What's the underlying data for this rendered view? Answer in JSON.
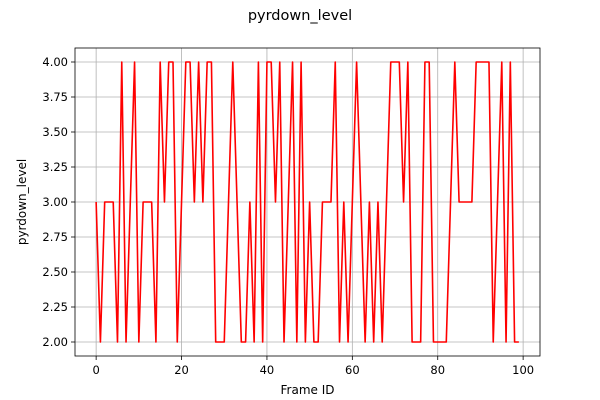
{
  "chart_data": {
    "type": "line",
    "title": "pyrdown_level",
    "xlabel": "Frame ID",
    "ylabel": "pyrdown_level",
    "xlim": [
      -4.95,
      103.95
    ],
    "ylim": [
      1.9,
      4.1
    ],
    "xticks": [
      0,
      20,
      40,
      60,
      80,
      100
    ],
    "xtick_labels": [
      "0",
      "20",
      "40",
      "60",
      "80",
      "100"
    ],
    "yticks": [
      2.0,
      2.25,
      2.5,
      2.75,
      3.0,
      3.25,
      3.5,
      3.75,
      4.0
    ],
    "ytick_labels": [
      "2.00",
      "2.25",
      "2.50",
      "2.75",
      "3.00",
      "3.25",
      "3.50",
      "3.75",
      "4.00"
    ],
    "grid": true,
    "line_color": "#ff0000",
    "series": [
      {
        "x": [
          0,
          1,
          2,
          3,
          4,
          5,
          6,
          7,
          8,
          9,
          10,
          11,
          12,
          13,
          14,
          15,
          16,
          17,
          18,
          19,
          20,
          21,
          22,
          23,
          24,
          25,
          26,
          27,
          28,
          29,
          30,
          31,
          32,
          33,
          34,
          35,
          36,
          37,
          38,
          39,
          40,
          41,
          42,
          43,
          44,
          45,
          46,
          47,
          48,
          49,
          50,
          51,
          52,
          53,
          54,
          55,
          56,
          57,
          58,
          59,
          60,
          61,
          62,
          63,
          64,
          65,
          66,
          67,
          68,
          69,
          70,
          71,
          72,
          73,
          74,
          75,
          76,
          77,
          78,
          79,
          80,
          81,
          82,
          83,
          84,
          85,
          86,
          87,
          88,
          89,
          90,
          91,
          92,
          93,
          94,
          95,
          96,
          97,
          98,
          99
        ],
        "values": [
          3,
          2,
          3,
          3,
          3,
          2,
          4,
          2,
          3,
          4,
          2,
          3,
          3,
          3,
          2,
          4,
          3,
          4,
          4,
          2,
          3,
          4,
          4,
          3,
          4,
          3,
          4,
          4,
          2,
          2,
          2,
          3,
          4,
          3,
          2,
          2,
          3,
          2,
          4,
          2,
          4,
          4,
          3,
          4,
          2,
          3,
          4,
          2,
          4,
          2,
          3,
          2,
          2,
          3,
          3,
          3,
          4,
          2,
          3,
          2,
          3,
          4,
          3,
          2,
          3,
          2,
          3,
          2,
          3,
          4,
          4,
          4,
          3,
          4,
          2,
          2,
          2,
          4,
          4,
          2,
          2,
          2,
          2,
          3,
          4,
          3,
          3,
          3,
          3,
          4,
          4,
          4,
          4,
          2,
          3,
          4,
          2,
          4,
          2,
          2
        ]
      }
    ]
  }
}
